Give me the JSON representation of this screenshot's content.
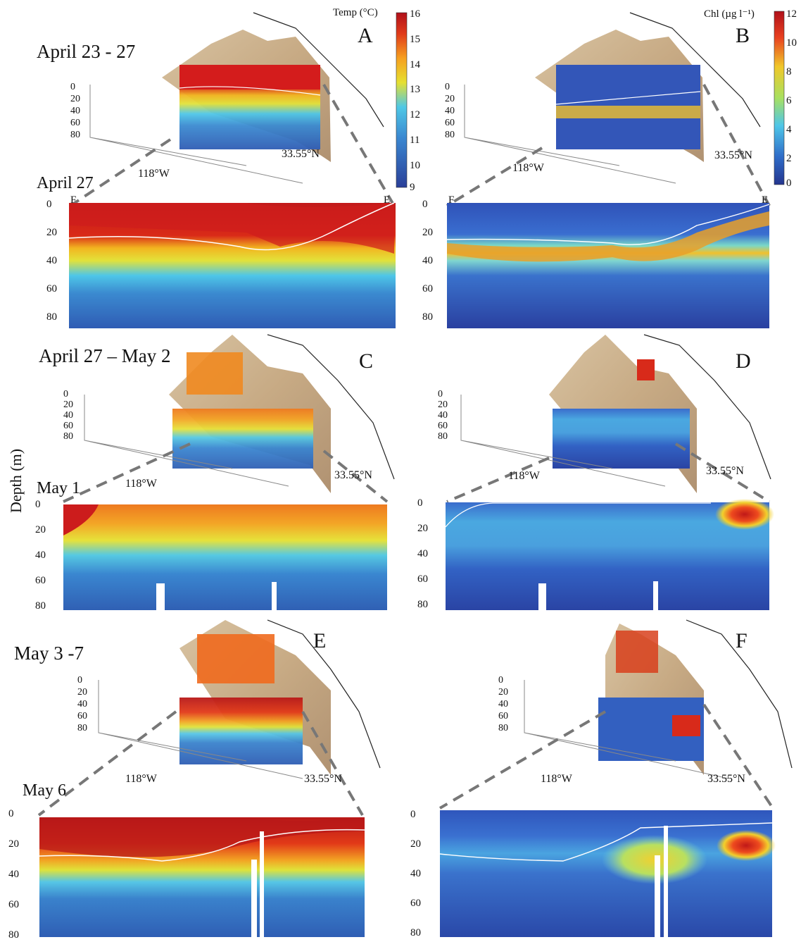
{
  "figure": {
    "y_axis_label": "Depth (m)",
    "lon_label": "118°W",
    "lat_label": "33.55°N",
    "section_ends": {
      "left": "F",
      "right": "E"
    }
  },
  "colorbars": {
    "temperature": {
      "title": "Temp (°C)",
      "ticks": [
        "16",
        "15",
        "14",
        "13",
        "12",
        "11",
        "10",
        "9"
      ],
      "min": 9,
      "max": 16
    },
    "chlorophyll": {
      "title": "Chl (µg l⁻¹)",
      "ticks": [
        "12",
        "10",
        "8",
        "6",
        "4",
        "2",
        "0"
      ],
      "min": 0,
      "max": 12
    }
  },
  "rows": [
    {
      "period": "April 23 - 27",
      "section_date": "April 27",
      "panels": [
        "A",
        "B"
      ]
    },
    {
      "period": "April 27 – May 2",
      "section_date": "May 1",
      "panels": [
        "C",
        "D"
      ]
    },
    {
      "period": "May 3 -7",
      "section_date": "May 6",
      "panels": [
        "E",
        "F"
      ]
    }
  ],
  "depth_ticks": [
    "0",
    "20",
    "40",
    "60",
    "80"
  ],
  "chart_data": [
    {
      "type": "heatmap",
      "panel": "A-section",
      "variable": "Temp (°C)",
      "date": "April 27",
      "ylim": [
        90,
        0
      ],
      "zlim": [
        9,
        16
      ]
    },
    {
      "type": "heatmap",
      "panel": "B-section",
      "variable": "Chl (µg l⁻¹)",
      "date": "April 27",
      "ylim": [
        90,
        0
      ],
      "zlim": [
        0,
        12
      ]
    },
    {
      "type": "heatmap",
      "panel": "C-section",
      "variable": "Temp (°C)",
      "date": "May 1",
      "ylim": [
        85,
        0
      ],
      "zlim": [
        9,
        16
      ]
    },
    {
      "type": "heatmap",
      "panel": "D-section",
      "variable": "Chl (µg l⁻¹)",
      "date": "May 1",
      "ylim": [
        85,
        0
      ],
      "zlim": [
        0,
        12
      ]
    },
    {
      "type": "heatmap",
      "panel": "E-section",
      "variable": "Temp (°C)",
      "date": "May 6",
      "ylim": [
        85,
        0
      ],
      "zlim": [
        9,
        16
      ]
    },
    {
      "type": "heatmap",
      "panel": "F-section",
      "variable": "Chl (µg l⁻¹)",
      "date": "May 6",
      "ylim": [
        85,
        0
      ],
      "zlim": [
        0,
        12
      ]
    }
  ]
}
